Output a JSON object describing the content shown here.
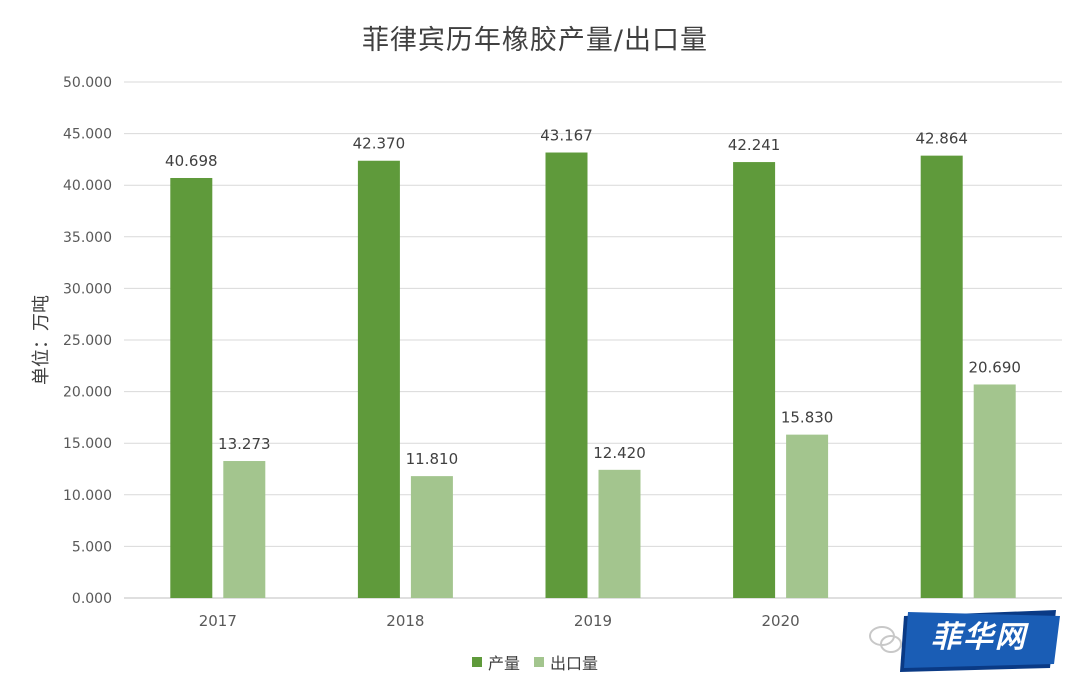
{
  "chart_data": {
    "type": "bar",
    "title": "菲律宾历年橡胶产量/出口量",
    "ylabel": "单位：万吨",
    "xlabel": "",
    "categories": [
      "2017",
      "2018",
      "2019",
      "2020",
      ""
    ],
    "series": [
      {
        "name": "产量",
        "color": "#5f9a3b",
        "values": [
          40.698,
          42.37,
          43.167,
          42.241,
          42.864
        ]
      },
      {
        "name": "出口量",
        "color": "#a3c58e",
        "values": [
          13.273,
          11.81,
          12.42,
          15.83,
          20.69
        ]
      }
    ],
    "ylim": [
      0,
      50
    ],
    "yticks": [
      "0.000",
      "5.000",
      "10.000",
      "15.000",
      "20.000",
      "25.000",
      "30.000",
      "35.000",
      "40.000",
      "45.000",
      "50.000"
    ],
    "data_labels": [
      [
        "40.698",
        "42.370",
        "43.167",
        "42.241",
        "42.864"
      ],
      [
        "13.273",
        "11.810",
        "12.420",
        "15.830",
        "20.690"
      ]
    ],
    "grid": true,
    "legend_position": "bottom"
  },
  "watermark": {
    "text": "菲华网",
    "logo_colors": [
      "#1a5db5",
      "#0a3a85"
    ]
  }
}
